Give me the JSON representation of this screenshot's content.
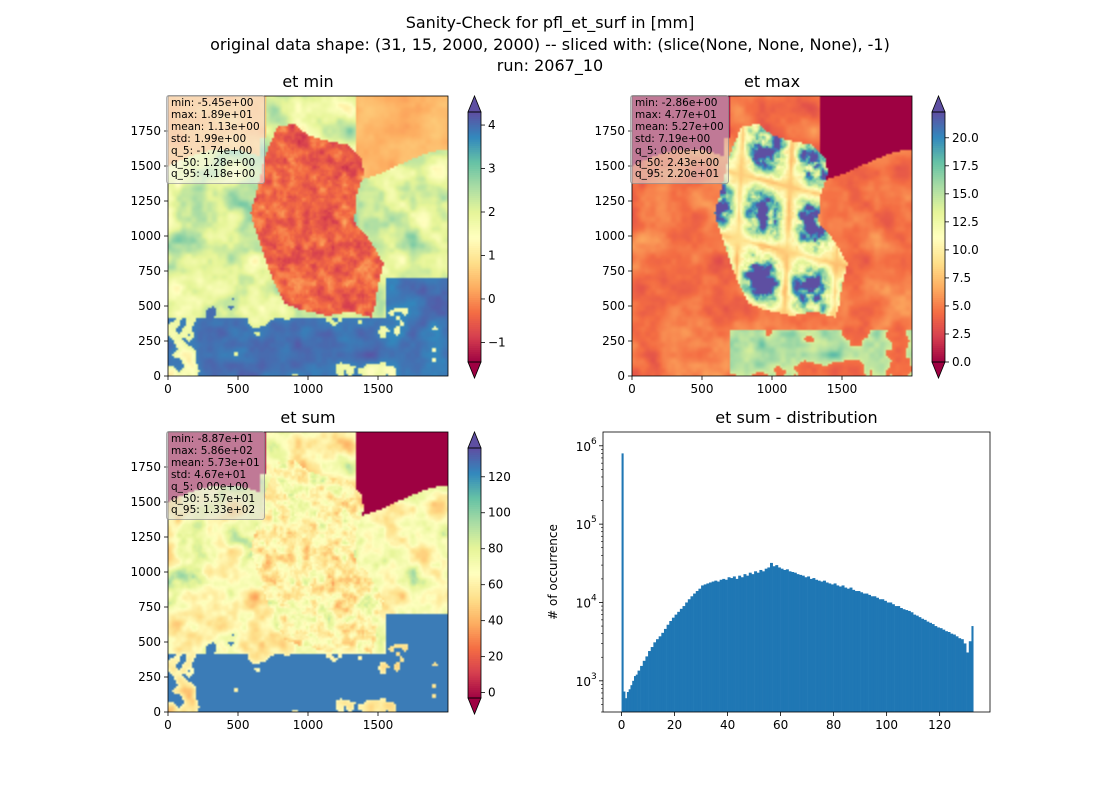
{
  "figure": {
    "title_lines": [
      "Sanity-Check for pfl_et_surf in [mm]",
      "original data shape: (31, 15, 2000, 2000) -- sliced with: (slice(None, None, None), -1)",
      "run: 2067_10"
    ]
  },
  "colors": {
    "hist_bar": "#1f77b4",
    "spectral": [
      "#9e0142",
      "#d53e4f",
      "#f46d43",
      "#fdae61",
      "#fee08b",
      "#ffffbf",
      "#e6f598",
      "#abdda4",
      "#66c2a5",
      "#3288bd",
      "#5e4fa2"
    ]
  },
  "chart_data": [
    {
      "type": "heatmap",
      "title": "et min",
      "colormap": "Spectral",
      "x_range": [
        0,
        2000
      ],
      "y_range": [
        0,
        2000
      ],
      "x_ticks": [
        0,
        500,
        1000,
        1500
      ],
      "y_ticks": [
        0,
        250,
        500,
        750,
        1000,
        1250,
        1500,
        1750
      ],
      "colorbar": {
        "range": [
          -1.45,
          4.3
        ],
        "ticks": [
          -1,
          0,
          1,
          2,
          3,
          4
        ],
        "tick_labels": [
          "−1",
          "0",
          "1",
          "2",
          "3",
          "4"
        ],
        "extend": "both"
      },
      "stats": [
        "min: -5.45e+00",
        "max: 1.89e+01",
        "mean: 1.13e+00",
        "std: 1.99e+00",
        "q_5: -1.74e+00",
        "q_50: 1.28e+00",
        "q_95: 4.18e+00"
      ]
    },
    {
      "type": "heatmap",
      "title": "et max",
      "colormap": "Spectral",
      "x_range": [
        0,
        2000
      ],
      "y_range": [
        0,
        2000
      ],
      "x_ticks": [
        0,
        500,
        1000,
        1500
      ],
      "y_ticks": [
        0,
        250,
        500,
        750,
        1000,
        1250,
        1500,
        1750
      ],
      "colorbar": {
        "range": [
          0,
          22.3
        ],
        "ticks": [
          0,
          2.5,
          5,
          7.5,
          10,
          12.5,
          15,
          17.5,
          20
        ],
        "tick_labels": [
          "0.0",
          "2.5",
          "5.0",
          "7.5",
          "10.0",
          "12.5",
          "15.0",
          "17.5",
          "20.0"
        ],
        "extend": "both"
      },
      "stats": [
        "min: -2.86e+00",
        "max: 4.77e+01",
        "mean: 5.27e+00",
        "std: 7.19e+00",
        "q_5: 0.00e+00",
        "q_50: 2.43e+00",
        "q_95: 2.20e+01"
      ]
    },
    {
      "type": "heatmap",
      "title": "et sum",
      "colormap": "Spectral",
      "x_range": [
        0,
        2000
      ],
      "y_range": [
        0,
        2000
      ],
      "x_ticks": [
        0,
        500,
        1000,
        1500
      ],
      "y_ticks": [
        0,
        250,
        500,
        750,
        1000,
        1250,
        1500,
        1750
      ],
      "colorbar": {
        "range": [
          -3,
          136
        ],
        "ticks": [
          0,
          20,
          40,
          60,
          80,
          100,
          120
        ],
        "tick_labels": [
          "0",
          "20",
          "40",
          "60",
          "80",
          "100",
          "120"
        ],
        "extend": "both"
      },
      "stats": [
        "min: -8.87e+01",
        "max: 5.86e+02",
        "mean: 5.73e+01",
        "std: 4.67e+01",
        "q_5: 0.00e+00",
        "q_50: 5.57e+01",
        "q_95: 1.33e+02"
      ]
    },
    {
      "type": "bar",
      "title": "et sum - distribution",
      "ylabel": "# of occurrence",
      "xlabel": "",
      "yscale": "log",
      "xlim": [
        -7,
        139
      ],
      "ylim": [
        400,
        1500000
      ],
      "x_ticks": [
        0,
        20,
        40,
        60,
        80,
        100,
        120
      ],
      "y_ticks": [
        1000,
        10000,
        100000,
        1000000
      ],
      "y_tick_labels": [
        [
          "10",
          "3"
        ],
        [
          "10",
          "4"
        ],
        [
          "10",
          "5"
        ],
        [
          "10",
          "6"
        ]
      ],
      "bin_width": 0.67,
      "bins": [
        [
          0,
          800000
        ],
        [
          0.67,
          730
        ],
        [
          1.34,
          600
        ],
        [
          2.01,
          720
        ],
        [
          2.68,
          780
        ],
        [
          3.35,
          880
        ],
        [
          4.02,
          1000
        ],
        [
          4.69,
          1150
        ],
        [
          5.36,
          1200
        ],
        [
          6.03,
          1350
        ],
        [
          7,
          1550
        ],
        [
          8,
          1800
        ],
        [
          9,
          2050
        ],
        [
          10,
          2400
        ],
        [
          11,
          2700
        ],
        [
          12,
          3100
        ],
        [
          13,
          3400
        ],
        [
          14,
          3700
        ],
        [
          15,
          4100
        ],
        [
          16,
          4600
        ],
        [
          17,
          5200
        ],
        [
          18,
          5800
        ],
        [
          19,
          6400
        ],
        [
          20,
          7000
        ],
        [
          21,
          7600
        ],
        [
          22,
          8300
        ],
        [
          23,
          9000
        ],
        [
          24,
          10000
        ],
        [
          25,
          11000
        ],
        [
          26,
          12000
        ],
        [
          27,
          13000
        ],
        [
          28,
          14000
        ],
        [
          29,
          15000
        ],
        [
          30,
          16500
        ],
        [
          31,
          17000
        ],
        [
          32,
          17500
        ],
        [
          33,
          18000
        ],
        [
          34,
          18500
        ],
        [
          35,
          19000
        ],
        [
          36,
          18500
        ],
        [
          37,
          19500
        ],
        [
          38,
          20000
        ],
        [
          39,
          19500
        ],
        [
          40,
          21000
        ],
        [
          41,
          20500
        ],
        [
          42,
          21500
        ],
        [
          43,
          20000
        ],
        [
          44,
          22000
        ],
        [
          45,
          21000
        ],
        [
          46,
          23000
        ],
        [
          47,
          22000
        ],
        [
          48,
          24000
        ],
        [
          49,
          23000
        ],
        [
          50,
          25000
        ],
        [
          51,
          24000
        ],
        [
          52,
          26000
        ],
        [
          53,
          25000
        ],
        [
          54,
          27000
        ],
        [
          55,
          28000
        ],
        [
          56,
          32000
        ],
        [
          57,
          29000
        ],
        [
          58,
          30000
        ],
        [
          59,
          28000
        ],
        [
          60,
          27000
        ],
        [
          61,
          26000
        ],
        [
          62,
          26500
        ],
        [
          63,
          25000
        ],
        [
          64,
          24500
        ],
        [
          65,
          24000
        ],
        [
          66,
          23000
        ],
        [
          67,
          22500
        ],
        [
          68,
          22000
        ],
        [
          69,
          21000
        ],
        [
          70,
          21500
        ],
        [
          71,
          20000
        ],
        [
          72,
          20500
        ],
        [
          73,
          19500
        ],
        [
          74,
          19000
        ],
        [
          75,
          18500
        ],
        [
          76,
          19000
        ],
        [
          77,
          18000
        ],
        [
          78,
          17500
        ],
        [
          79,
          17000
        ],
        [
          80,
          17500
        ],
        [
          81,
          16500
        ],
        [
          82,
          16000
        ],
        [
          83,
          16500
        ],
        [
          84,
          15500
        ],
        [
          85,
          15000
        ],
        [
          86,
          15500
        ],
        [
          87,
          14500
        ],
        [
          88,
          14000
        ],
        [
          89,
          14000
        ],
        [
          90,
          13500
        ],
        [
          91,
          13000
        ],
        [
          92,
          13000
        ],
        [
          93,
          12500
        ],
        [
          94,
          12000
        ],
        [
          95,
          12000
        ],
        [
          96,
          11500
        ],
        [
          97,
          11000
        ],
        [
          98,
          11000
        ],
        [
          99,
          10500
        ],
        [
          100,
          10000
        ],
        [
          101,
          10000
        ],
        [
          102,
          9500
        ],
        [
          103,
          9000
        ],
        [
          104,
          9000
        ],
        [
          105,
          8500
        ],
        [
          106,
          8200
        ],
        [
          107,
          8000
        ],
        [
          108,
          7800
        ],
        [
          109,
          7500
        ],
        [
          110,
          7000
        ],
        [
          111,
          6800
        ],
        [
          112,
          6500
        ],
        [
          113,
          6200
        ],
        [
          114,
          6000
        ],
        [
          115,
          5700
        ],
        [
          116,
          5500
        ],
        [
          117,
          5300
        ],
        [
          118,
          5000
        ],
        [
          119,
          4800
        ],
        [
          120,
          4700
        ],
        [
          121,
          4500
        ],
        [
          122,
          4300
        ],
        [
          123,
          4200
        ],
        [
          124,
          4000
        ],
        [
          125,
          3900
        ],
        [
          126,
          3700
        ],
        [
          127,
          3500
        ],
        [
          128,
          3400
        ],
        [
          129,
          3000
        ],
        [
          130,
          2300
        ],
        [
          131,
          3200
        ],
        [
          132,
          5000
        ]
      ]
    }
  ]
}
